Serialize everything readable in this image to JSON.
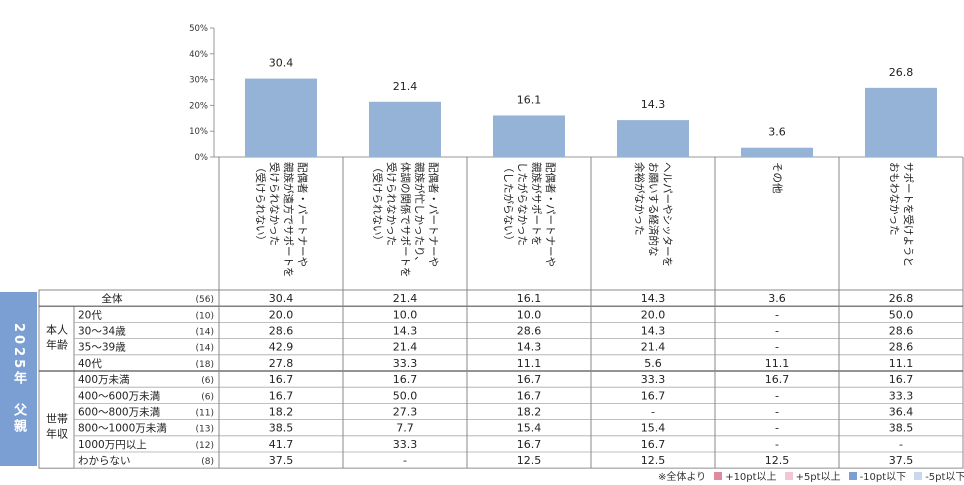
{
  "side_label": "2025年　父親",
  "chart_data": {
    "type": "bar",
    "y_axis": {
      "ylim": [
        0,
        50
      ],
      "ticks": [
        "0%",
        "10%",
        "20%",
        "30%",
        "40%",
        "50%"
      ]
    },
    "bar_color": "#95b3d7",
    "categories": [
      "配偶者・パートナーや親族が遠方でサポートを受けられなかった（受けられない）",
      "配偶者・パートナーや親族が忙しかったり、体調の関係でサポートを受けられなかった（受けられない）",
      "配偶者・パートナーや親族がサポートをしたがらなかった（したがらない）",
      "ヘルパーやシッターをお願いする経済的な余裕がなかった",
      "その他",
      "サポートを受けようとおもわなかった"
    ],
    "category_lines": [
      [
        "配偶者・パートナーや",
        "親族が遠方でサポートを",
        "受けられなかった",
        "（受けられない）"
      ],
      [
        "配偶者・パートナーや",
        "親族が忙しかったり、",
        "体調の関係でサポートを",
        "受けられなかった",
        "（受けられない）"
      ],
      [
        "配偶者・パートナーや",
        "親族がサポートを",
        "したがらなかった",
        "（したがらない）"
      ],
      [
        "ヘルパーやシッターを",
        "お願いする経済的な",
        "余裕がなかった"
      ],
      [
        "その他"
      ],
      [
        "サポートを受けようと",
        "おもわなかった"
      ]
    ],
    "values": [
      30.4,
      21.4,
      16.1,
      14.3,
      3.6,
      26.8
    ],
    "value_labels": [
      "30.4",
      "21.4",
      "16.1",
      "14.3",
      "3.6",
      "26.8"
    ],
    "table": {
      "groups": [
        {
          "label": [
            "本人",
            "年齢"
          ],
          "start": 1,
          "end": 4
        },
        {
          "label": [
            "世帯",
            "年収"
          ],
          "start": 5,
          "end": 11
        }
      ],
      "rows": [
        {
          "label": "全体",
          "n": "(56)",
          "cells": [
            "30.4",
            "21.4",
            "16.1",
            "14.3",
            "3.6",
            "26.8"
          ],
          "total": true
        },
        {
          "label": "20代",
          "n": "(10)",
          "cells": [
            "20.0",
            "10.0",
            "10.0",
            "20.0",
            "-",
            "50.0"
          ]
        },
        {
          "label": "30～34歳",
          "n": "(14)",
          "cells": [
            "28.6",
            "14.3",
            "28.6",
            "14.3",
            "-",
            "28.6"
          ]
        },
        {
          "label": "35～39歳",
          "n": "(14)",
          "cells": [
            "42.9",
            "21.4",
            "14.3",
            "21.4",
            "-",
            "28.6"
          ]
        },
        {
          "label": "40代",
          "n": "(18)",
          "cells": [
            "27.8",
            "33.3",
            "11.1",
            "5.6",
            "11.1",
            "11.1"
          ]
        },
        {
          "label": "400万未満",
          "n": "(6)",
          "cells": [
            "16.7",
            "16.7",
            "16.7",
            "33.3",
            "16.7",
            "16.7"
          ]
        },
        {
          "label": "400～600万未満",
          "n": "(6)",
          "cells": [
            "16.7",
            "50.0",
            "16.7",
            "16.7",
            "-",
            "33.3"
          ]
        },
        {
          "label": "600～800万未満",
          "n": "(11)",
          "cells": [
            "18.2",
            "27.3",
            "18.2",
            "-",
            "-",
            "36.4"
          ]
        },
        {
          "label": "800～1000万未満",
          "n": "(13)",
          "cells": [
            "38.5",
            "7.7",
            "15.4",
            "15.4",
            "-",
            "38.5"
          ]
        },
        {
          "label": "1000万円以上",
          "n": "(12)",
          "cells": [
            "41.7",
            "33.3",
            "16.7",
            "16.7",
            "-",
            "-"
          ]
        },
        {
          "label": "わからない",
          "n": "(8)",
          "cells": [
            "37.5",
            "-",
            "12.5",
            "12.5",
            "12.5",
            "37.5"
          ]
        }
      ]
    },
    "legend": {
      "prefix": "※全体より",
      "items": [
        {
          "label": "+10pt以上",
          "color": "#e08aa2"
        },
        {
          "label": "+5pt以上",
          "color": "#f3c6d3"
        },
        {
          "label": "-10pt以下",
          "color": "#7b9fd2"
        },
        {
          "label": "-5pt以下",
          "color": "#c9d8ec"
        }
      ]
    }
  }
}
